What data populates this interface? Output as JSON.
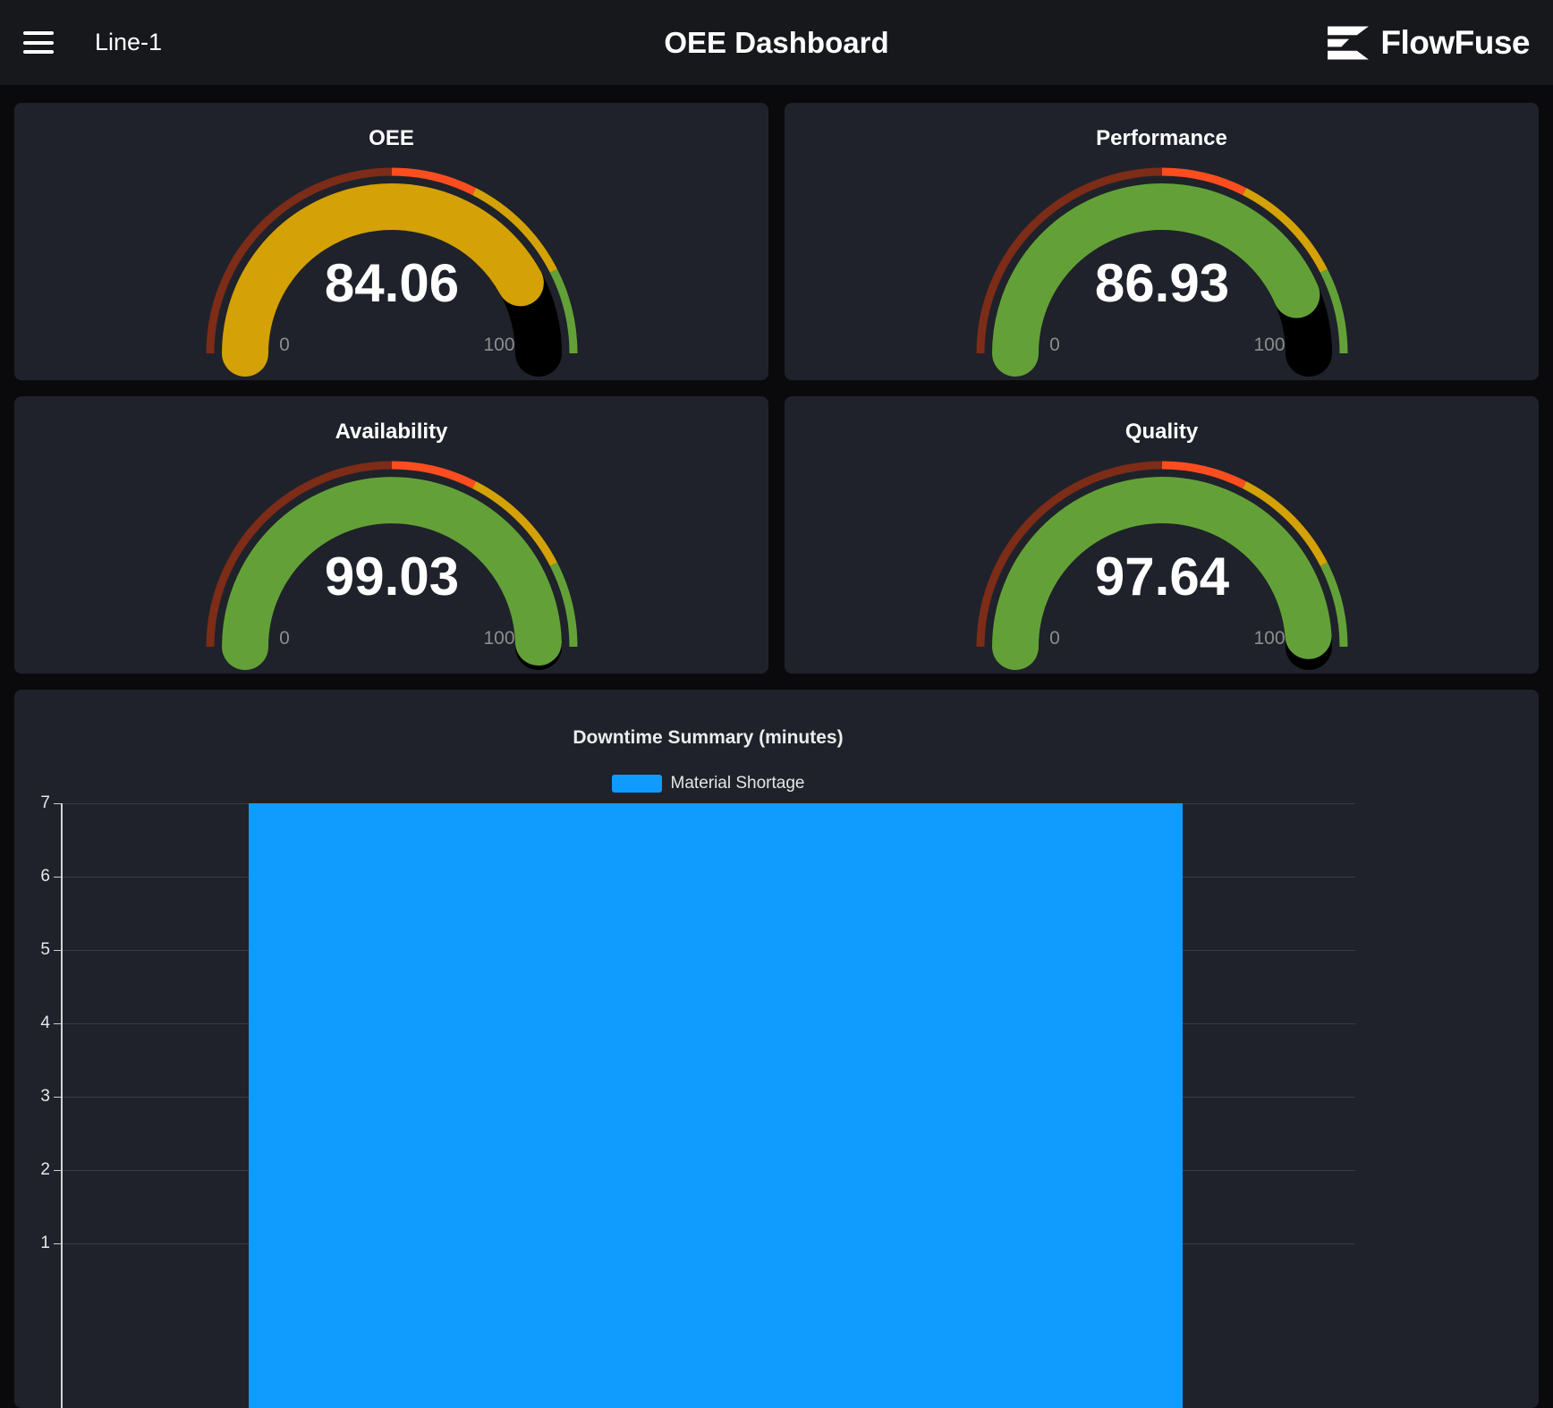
{
  "header": {
    "line_label": "Line-1",
    "title": "OEE Dashboard",
    "brand": "FlowFuse"
  },
  "gauges": [
    {
      "title": "OEE",
      "value": "84.06",
      "value_num": 84.06,
      "min": "0",
      "max": "100",
      "color": "#d4a106"
    },
    {
      "title": "Performance",
      "value": "86.93",
      "value_num": 86.93,
      "min": "0",
      "max": "100",
      "color": "#63a138"
    },
    {
      "title": "Availability",
      "value": "99.03",
      "value_num": 99.03,
      "min": "0",
      "max": "100",
      "color": "#63a138"
    },
    {
      "title": "Quality",
      "value": "97.64",
      "value_num": 97.64,
      "min": "0",
      "max": "100",
      "color": "#63a138"
    }
  ],
  "gauge_segments": [
    {
      "from": 0,
      "to": 50,
      "color": "#7d2c17"
    },
    {
      "from": 50,
      "to": 65,
      "color": "#fc4d1f"
    },
    {
      "from": 65,
      "to": 85,
      "color": "#d4a106"
    },
    {
      "from": 85,
      "to": 100,
      "color": "#63a138"
    }
  ],
  "chart_data": {
    "type": "bar",
    "title": "Downtime Summary (minutes)",
    "legend": [
      {
        "label": "Material Shortage",
        "color": "#0f9bff"
      }
    ],
    "categories": [
      "Material Shortage"
    ],
    "values": [
      7
    ],
    "y_ticks": [
      7,
      6,
      5,
      4,
      3,
      2,
      1
    ],
    "xlabel": "",
    "ylabel": "",
    "grid": true,
    "legend_position": "top",
    "bar_color": "#0f9bff"
  }
}
